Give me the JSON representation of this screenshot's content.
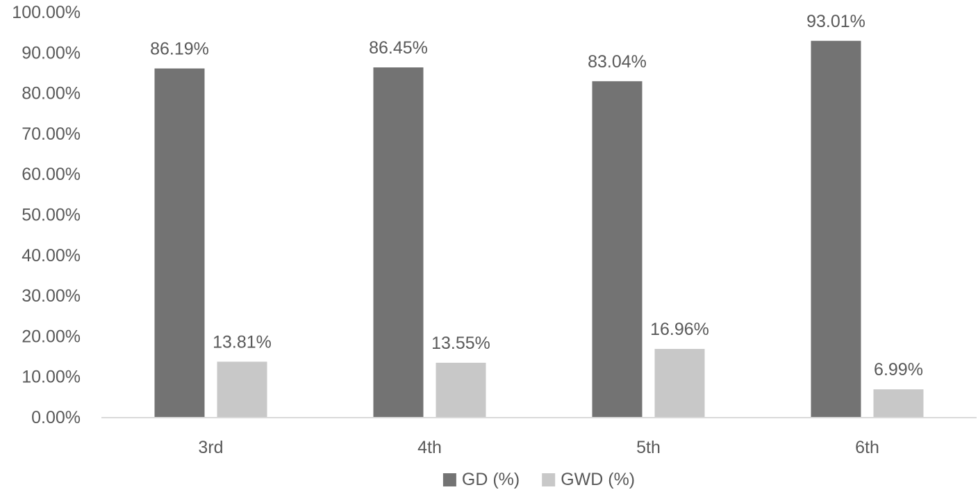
{
  "chart_data": {
    "type": "bar",
    "title": "",
    "xlabel": "",
    "ylabel": "",
    "categories": [
      "3rd",
      "4th",
      "5th",
      "6th"
    ],
    "series": [
      {
        "name": "GD (%)",
        "values": [
          86.19,
          86.45,
          83.04,
          93.01
        ],
        "labels": [
          "86.19%",
          "86.45%",
          "83.04%",
          "93.01%"
        ],
        "color": "#737373"
      },
      {
        "name": "GWD (%)",
        "values": [
          13.81,
          13.55,
          16.96,
          6.99
        ],
        "labels": [
          "13.81%",
          "13.55%",
          "16.96%",
          "6.99%"
        ],
        "color": "#c8c8c8"
      }
    ],
    "ylim": [
      0,
      100
    ],
    "yticks": [
      "0.00%",
      "10.00%",
      "20.00%",
      "30.00%",
      "40.00%",
      "50.00%",
      "60.00%",
      "70.00%",
      "80.00%",
      "90.00%",
      "100.00%"
    ],
    "grid": false,
    "legend": "bottom-center",
    "axis_color": "#d9d9d9",
    "text_color": "#595959"
  }
}
